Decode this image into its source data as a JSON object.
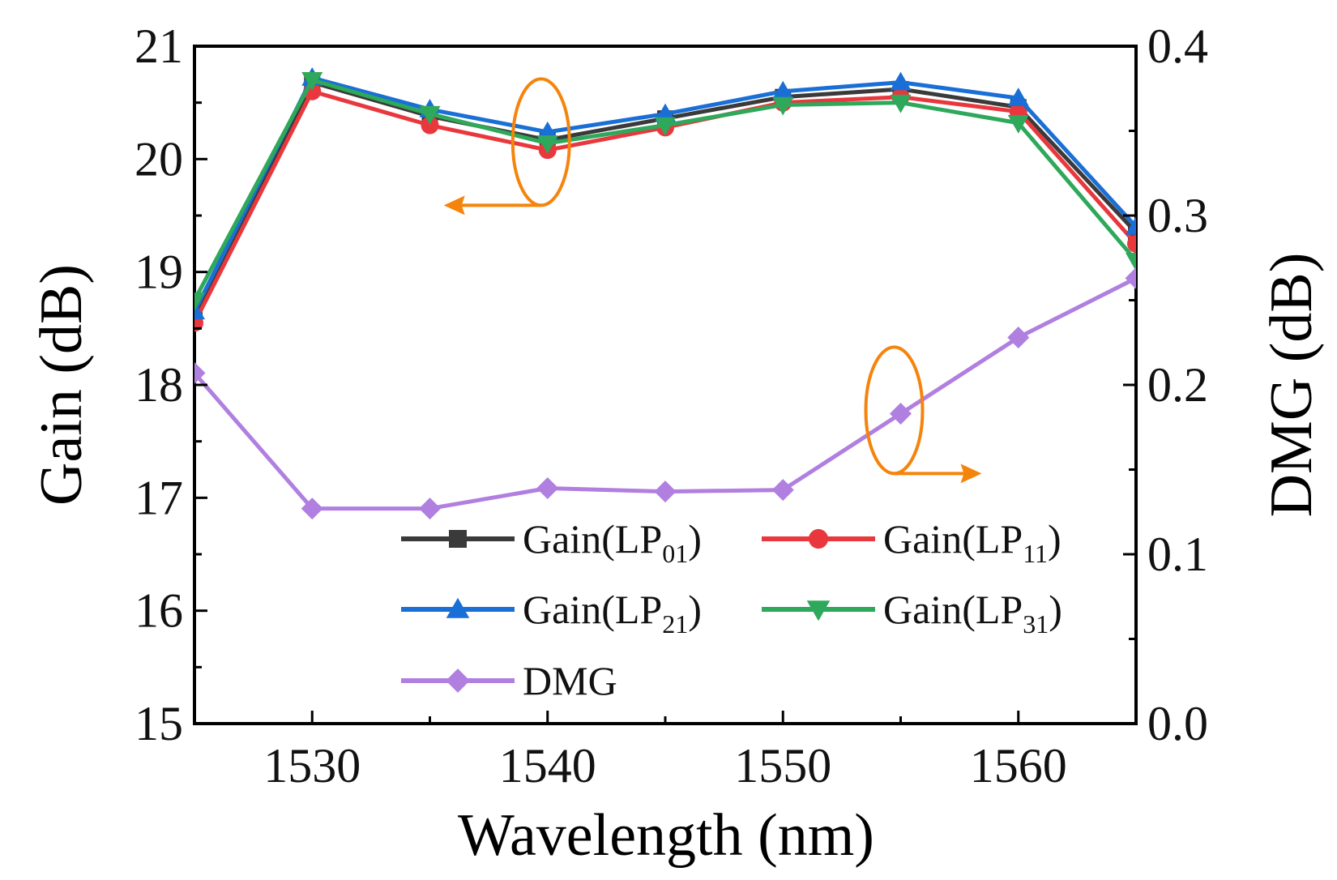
{
  "chart_data": {
    "type": "line",
    "title": "",
    "xlabel": "Wavelength (nm)",
    "ylabel": "Gain (dB)",
    "y2label": "DMG (dB)",
    "xlim": [
      1525,
      1565
    ],
    "ylim": [
      15,
      21
    ],
    "y2lim": [
      0.0,
      0.4
    ],
    "x": [
      1525,
      1530,
      1535,
      1540,
      1545,
      1550,
      1555,
      1560,
      1565
    ],
    "x_ticks": [
      "1530",
      "1540",
      "1550",
      "1560"
    ],
    "y_ticks": [
      "15",
      "16",
      "17",
      "18",
      "19",
      "20",
      "21"
    ],
    "y2_ticks": [
      "0.0",
      "0.1",
      "0.2",
      "0.3",
      "0.4"
    ],
    "series": [
      {
        "name": "Gain(LP01)",
        "label_main": "Gain(LP",
        "label_sub": "01",
        "label_end": ")",
        "axis": "left",
        "color": "#3a3a3a",
        "marker": "square",
        "values": [
          18.6,
          20.68,
          20.38,
          20.17,
          20.36,
          20.55,
          20.62,
          20.46,
          19.35
        ]
      },
      {
        "name": "Gain(LP11)",
        "label_main": "Gain(LP",
        "label_sub": "11",
        "label_end": ")",
        "axis": "left",
        "color": "#e8383d",
        "marker": "circle",
        "values": [
          18.55,
          20.6,
          20.3,
          20.08,
          20.28,
          20.5,
          20.55,
          20.42,
          19.25
        ]
      },
      {
        "name": "Gain(LP21)",
        "label_main": "Gain(LP",
        "label_sub": "21",
        "label_end": ")",
        "axis": "left",
        "color": "#1a6fd6",
        "marker": "triangle-up",
        "values": [
          18.65,
          20.72,
          20.44,
          20.24,
          20.4,
          20.6,
          20.68,
          20.54,
          19.4
        ]
      },
      {
        "name": "Gain(LP31)",
        "label_main": "Gain(LP",
        "label_sub": "31",
        "label_end": ")",
        "axis": "left",
        "color": "#2ea85a",
        "marker": "triangle-down",
        "values": [
          18.75,
          20.7,
          20.4,
          20.14,
          20.3,
          20.48,
          20.5,
          20.32,
          19.1
        ]
      },
      {
        "name": "DMG",
        "label_main": "DMG",
        "label_sub": "",
        "label_end": "",
        "axis": "right",
        "color": "#b07fe0",
        "marker": "diamond",
        "values": [
          0.207,
          0.127,
          0.127,
          0.139,
          0.137,
          0.138,
          0.183,
          0.228,
          0.263
        ]
      }
    ],
    "annotations": [
      {
        "type": "ellipse-arrow",
        "color": "#f5840c",
        "points_to": "left-axis",
        "at_x": 1540,
        "at_y": 20.15
      },
      {
        "type": "ellipse-arrow",
        "color": "#f5840c",
        "points_to": "right-axis",
        "at_x": 1555,
        "at_y": 0.185
      }
    ],
    "legend_position": "bottom-center"
  }
}
